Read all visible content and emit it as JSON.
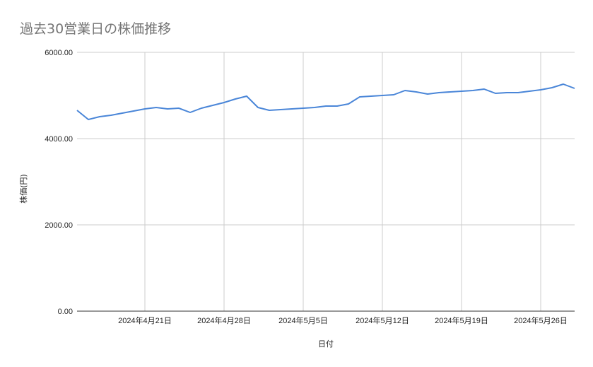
{
  "chart_data": {
    "type": "line",
    "title": "過去30営業日の株価推移",
    "xlabel": "日付",
    "ylabel": "株価(円)",
    "ylim": [
      0,
      6000
    ],
    "yticks": [
      "0.00",
      "2000.00",
      "4000.00",
      "6000.00"
    ],
    "xlim": [
      "2024-04-15",
      "2024-05-29"
    ],
    "xticks": [
      {
        "date": "2024-04-21",
        "label": "2024年4月21日"
      },
      {
        "date": "2024-04-28",
        "label": "2024年4月28日"
      },
      {
        "date": "2024-05-05",
        "label": "2024年5月5日"
      },
      {
        "date": "2024-05-12",
        "label": "2024年5月12日"
      },
      {
        "date": "2024-05-19",
        "label": "2024年5月19日"
      },
      {
        "date": "2024-05-26",
        "label": "2024年5月26日"
      }
    ],
    "grid": true,
    "line_color": "#4a86d8",
    "x": [
      "2024-04-15",
      "2024-04-16",
      "2024-04-17",
      "2024-04-18",
      "2024-04-19",
      "2024-04-20",
      "2024-04-21",
      "2024-04-22",
      "2024-04-23",
      "2024-04-24",
      "2024-04-25",
      "2024-04-26",
      "2024-04-27",
      "2024-04-28",
      "2024-04-29",
      "2024-04-30",
      "2024-05-01",
      "2024-05-02",
      "2024-05-03",
      "2024-05-04",
      "2024-05-05",
      "2024-05-06",
      "2024-05-07",
      "2024-05-08",
      "2024-05-09",
      "2024-05-10",
      "2024-05-11",
      "2024-05-12",
      "2024-05-13",
      "2024-05-14",
      "2024-05-15",
      "2024-05-16",
      "2024-05-17",
      "2024-05-18",
      "2024-05-19",
      "2024-05-20",
      "2024-05-21",
      "2024-05-22",
      "2024-05-23",
      "2024-05-24",
      "2024-05-25",
      "2024-05-26",
      "2024-05-27",
      "2024-05-28",
      "2024-05-29"
    ],
    "values": [
      4656,
      4443,
      4508,
      4541,
      4590,
      4640,
      4689,
      4722,
      4689,
      4705,
      4607,
      4705,
      4771,
      4836,
      4918,
      4984,
      4722,
      4656,
      4672,
      4689,
      4705,
      4722,
      4754,
      4754,
      4803,
      4967,
      4984,
      5000,
      5016,
      5115,
      5082,
      5033,
      5066,
      5082,
      5098,
      5115,
      5148,
      5049,
      5066,
      5066,
      5098,
      5131,
      5180,
      5262,
      5164
    ]
  }
}
